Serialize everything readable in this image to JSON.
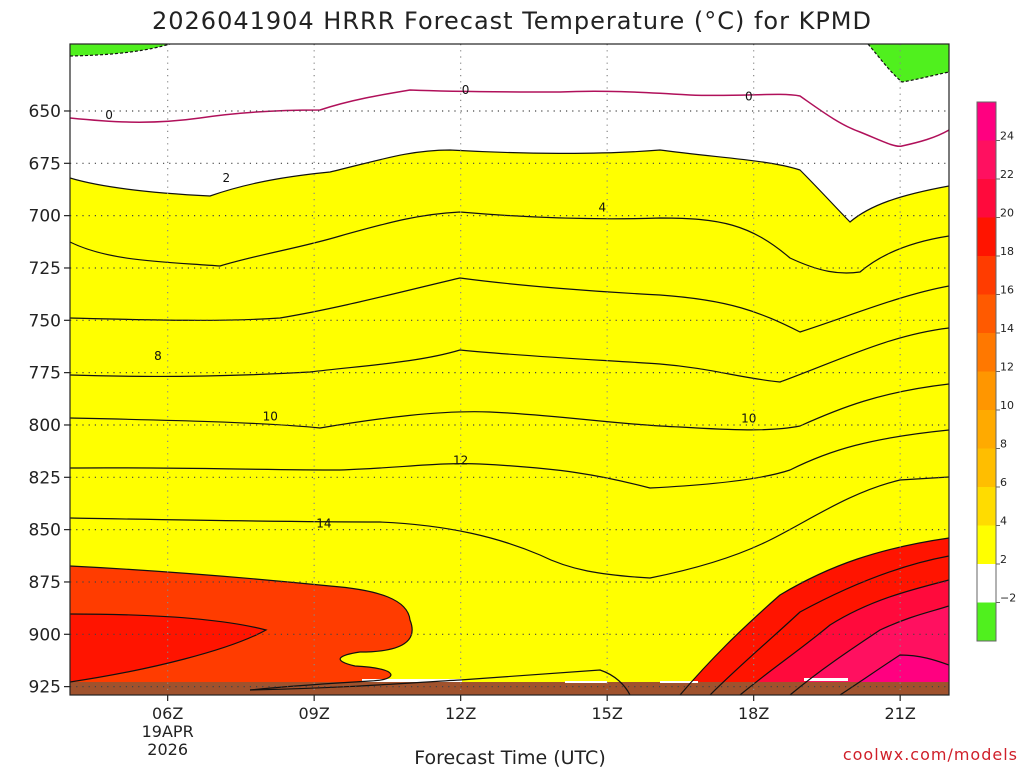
{
  "chart_data": {
    "type": "heatmap",
    "title": "2026041904 HRRR Forecast Temperature (°C) for KPMD",
    "xlabel": "Forecast Time (UTC)",
    "ylabel": "",
    "x_ticks": [
      {
        "hour": 6,
        "label": "06Z",
        "sub": [
          "19APR",
          "2026"
        ]
      },
      {
        "hour": 9,
        "label": "09Z"
      },
      {
        "hour": 12,
        "label": "12Z"
      },
      {
        "hour": 15,
        "label": "15Z"
      },
      {
        "hour": 18,
        "label": "18Z"
      },
      {
        "hour": 21,
        "label": "21Z"
      }
    ],
    "xlim": [
      4,
      22
    ],
    "y_ticks": [
      650,
      675,
      700,
      725,
      750,
      775,
      800,
      825,
      850,
      875,
      900,
      925
    ],
    "ylim": [
      618,
      929
    ],
    "y_inverted": true,
    "grid": "dotted",
    "colorbar": {
      "labels": [
        "24",
        "22",
        "20",
        "18",
        "16",
        "14",
        "12",
        "10",
        "8",
        "6",
        "4",
        "2",
        "−2"
      ],
      "levels": [
        {
          "lo": 24,
          "color": "#ff0080"
        },
        {
          "lo": 22,
          "color": "#ff1060"
        },
        {
          "lo": 20,
          "color": "#ff0a3c"
        },
        {
          "lo": 18,
          "color": "#ff1400"
        },
        {
          "lo": 16,
          "color": "#ff3c00"
        },
        {
          "lo": 14,
          "color": "#ff5a00"
        },
        {
          "lo": 12,
          "color": "#ff7800"
        },
        {
          "lo": 10,
          "color": "#ff9600"
        },
        {
          "lo": 8,
          "color": "#ffaa00"
        },
        {
          "lo": 6,
          "color": "#ffbe00"
        },
        {
          "lo": 4,
          "color": "#ffdc00"
        },
        {
          "lo": 2,
          "color": "#ffff00"
        },
        {
          "lo": -2,
          "color": "#ffffff"
        },
        {
          "lo": -4,
          "color": "#50f01e"
        }
      ]
    },
    "isotherm_labels": [
      {
        "text": "0",
        "hour": 4.8,
        "p": 652
      },
      {
        "text": "0",
        "hour": 12.1,
        "p": 640
      },
      {
        "text": "0",
        "hour": 17.9,
        "p": 643
      },
      {
        "text": "2",
        "hour": 7.2,
        "p": 682
      },
      {
        "text": "4",
        "hour": 14.9,
        "p": 696
      },
      {
        "text": "8",
        "hour": 5.8,
        "p": 767
      },
      {
        "text": "10",
        "hour": 8.1,
        "p": 796
      },
      {
        "text": "10",
        "hour": 17.9,
        "p": 797
      },
      {
        "text": "12",
        "hour": 12.0,
        "p": 817
      },
      {
        "text": "14",
        "hour": 9.2,
        "p": 847
      }
    ],
    "ground_color": "#a0522d",
    "isotherm_color": "#111111",
    "zero_isotherm_color": "#b0105a",
    "credit": "coolwx.com/models"
  }
}
